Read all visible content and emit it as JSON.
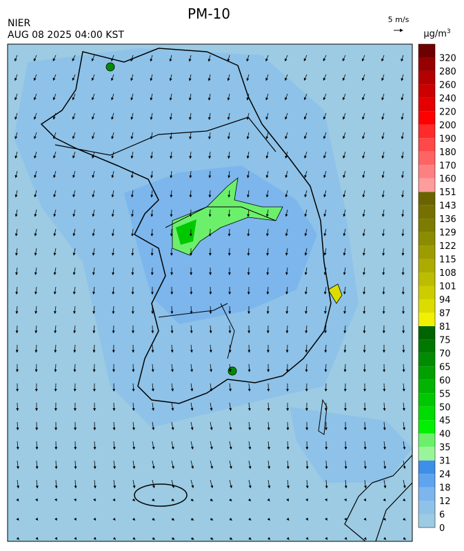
{
  "header": {
    "title": "PM-10",
    "source": "NIER",
    "time": "AUG 08 2025 04:00 KST"
  },
  "wind_scale": {
    "label": "5 m/s"
  },
  "legend": {
    "unit": "μg/m",
    "unit_exponent": "3",
    "levels": [
      0,
      6,
      12,
      18,
      24,
      31,
      35,
      40,
      45,
      50,
      55,
      60,
      65,
      70,
      75,
      81,
      87,
      94,
      101,
      108,
      115,
      122,
      129,
      136,
      143,
      151,
      160,
      170,
      180,
      190,
      200,
      220,
      240,
      260,
      280,
      320
    ],
    "colors": [
      "#9ccbe3",
      "#8ec2e8",
      "#7cb6ec",
      "#5ea4ee",
      "#3e8fe9",
      "#9af59a",
      "#6cf06c",
      "#00f000",
      "#00dc00",
      "#00c800",
      "#00b400",
      "#00a000",
      "#008c00",
      "#007800",
      "#006400",
      "#f0f000",
      "#dcdc00",
      "#cccc00",
      "#bcbc00",
      "#acac00",
      "#9c9c00",
      "#8c8c00",
      "#7c7c00",
      "#767000",
      "#6a6400",
      "#ff9c9c",
      "#ff8080",
      "#ff6464",
      "#ff4848",
      "#ff2a2a",
      "#ff0000",
      "#e40000",
      "#cc0000",
      "#b40000",
      "#960000",
      "#6e0000"
    ]
  }
}
